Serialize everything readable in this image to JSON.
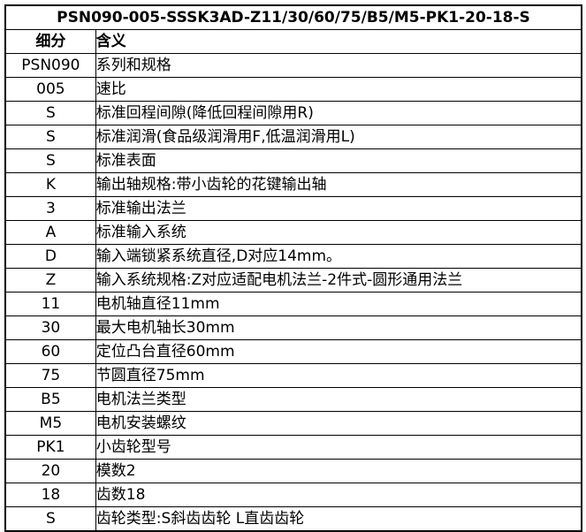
{
  "table": {
    "title": "PSN090-005-SSSK3AD-Z11/30/60/75/B5/M5-PK1-20-18-S",
    "columns": [
      "细分",
      "含义"
    ],
    "rows": [
      {
        "code": "PSN090",
        "meaning": "系列和规格"
      },
      {
        "code": "005",
        "meaning": "速比"
      },
      {
        "code": "S",
        "meaning": "标准回程间隙(降低回程间隙用R)"
      },
      {
        "code": "S",
        "meaning": "标准润滑(食品级润滑用F,低温润滑用L)"
      },
      {
        "code": "S",
        "meaning": "标准表面"
      },
      {
        "code": "K",
        "meaning": "输出轴规格:带小齿轮的花键输出轴"
      },
      {
        "code": "3",
        "meaning": "标准输出法兰"
      },
      {
        "code": "A",
        "meaning": "标准输入系统"
      },
      {
        "code": "D",
        "meaning": "输入端锁紧系统直径,D对应14mm。"
      },
      {
        "code": "Z",
        "meaning": "输入系统规格:Z对应适配电机法兰-2件式-圆形通用法兰"
      },
      {
        "code": "11",
        "meaning": "电机轴直径11mm"
      },
      {
        "code": "30",
        "meaning": "最大电机轴长30mm"
      },
      {
        "code": "60",
        "meaning": "定位凸台直径60mm"
      },
      {
        "code": "75",
        "meaning": "节圆直径75mm"
      },
      {
        "code": "B5",
        "meaning": "电机法兰类型"
      },
      {
        "code": "M5",
        "meaning": "电机安装螺纹"
      },
      {
        "code": "PK1",
        "meaning": "小齿轮型号"
      },
      {
        "code": "20",
        "meaning": "模数2"
      },
      {
        "code": "18",
        "meaning": "齿数18"
      },
      {
        "code": "S",
        "meaning": "齿轮类型:S斜齿齿轮 L直齿齿轮"
      }
    ],
    "colors": {
      "border": "#000000",
      "text": "#000000",
      "background": "#ffffff"
    }
  }
}
